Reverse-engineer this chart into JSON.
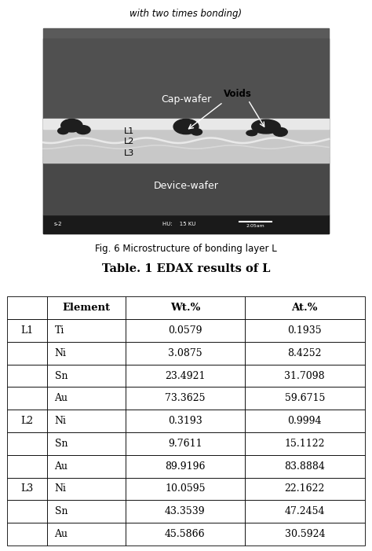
{
  "title_top": "with two times bonding)",
  "fig_caption": "Fig. 6 Microstructure of bonding layer L",
  "table_title": "Table. 1 EDAX results of L",
  "table_headers": [
    "Element",
    "Wt.%",
    "At.%"
  ],
  "table_data": [
    {
      "layer": "L1",
      "element": "Ti",
      "wt": "0.0579",
      "at": "0.1935"
    },
    {
      "layer": "L1",
      "element": "Ni",
      "wt": "3.0875",
      "at": "8.4252"
    },
    {
      "layer": "L1",
      "element": "Sn",
      "wt": "23.4921",
      "at": "31.7098"
    },
    {
      "layer": "L1",
      "element": "Au",
      "wt": "73.3625",
      "at": "59.6715"
    },
    {
      "layer": "L2",
      "element": "Ni",
      "wt": "0.3193",
      "at": "0.9994"
    },
    {
      "layer": "L2",
      "element": "Sn",
      "wt": "9.7611",
      "at": "15.1122"
    },
    {
      "layer": "L2",
      "element": "Au",
      "wt": "89.9196",
      "at": "83.8884"
    },
    {
      "layer": "L3",
      "element": "Ni",
      "wt": "10.0595",
      "at": "22.1622"
    },
    {
      "layer": "L3",
      "element": "Sn",
      "wt": "43.3539",
      "at": "47.2454"
    },
    {
      "layer": "L3",
      "element": "Au",
      "wt": "45.5866",
      "at": "30.5924"
    }
  ],
  "background_color": "#ffffff",
  "sem_outer_margin_color": "#f0f0f0",
  "sem_cap_color": "#505050",
  "sem_device_color": "#484848",
  "sem_bond_color": "#c8c8c8",
  "sem_statusbar_color": "#1a1a1a",
  "void_color": "#1e1e1e",
  "bright_layer_color": "#e8e8e8"
}
